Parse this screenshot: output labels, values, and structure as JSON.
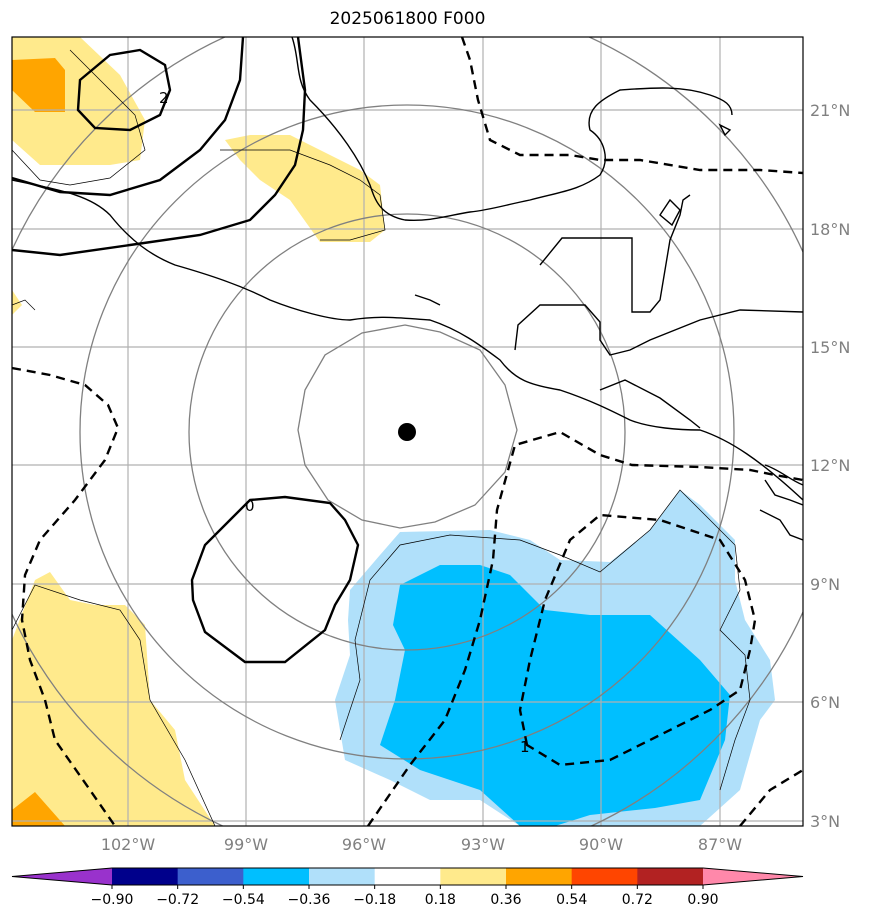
{
  "title": "2025061800 F000",
  "lat_labels": [
    "21°N",
    "18°N",
    "15°N",
    "12°N",
    "9°N",
    "6°N",
    "3°N"
  ],
  "lon_labels": [
    "102°W",
    "99°W",
    "96°W",
    "93°W",
    "90°W",
    "87°W"
  ],
  "contour_labels": {
    "top": "2",
    "zero": "0",
    "right": "1"
  },
  "colorbar": {
    "ticks": [
      "−0.90",
      "−0.72",
      "−0.54",
      "−0.36",
      "−0.18",
      "0.18",
      "0.36",
      "0.54",
      "0.72",
      "0.90"
    ],
    "colors": [
      "#9932cc",
      "#00008b",
      "#3c5fcd",
      "#00bfff",
      "#b0e0fa",
      "#ffffff",
      "#ffea8c",
      "#ffa500",
      "#ff4500",
      "#b22222",
      "#ff88aa"
    ]
  },
  "storm_center": {
    "lat": 12.9,
    "lon": -94.9
  },
  "colors": {
    "grid": "#b0b0b0",
    "range_rings": "#808080",
    "coast": "#000000"
  }
}
